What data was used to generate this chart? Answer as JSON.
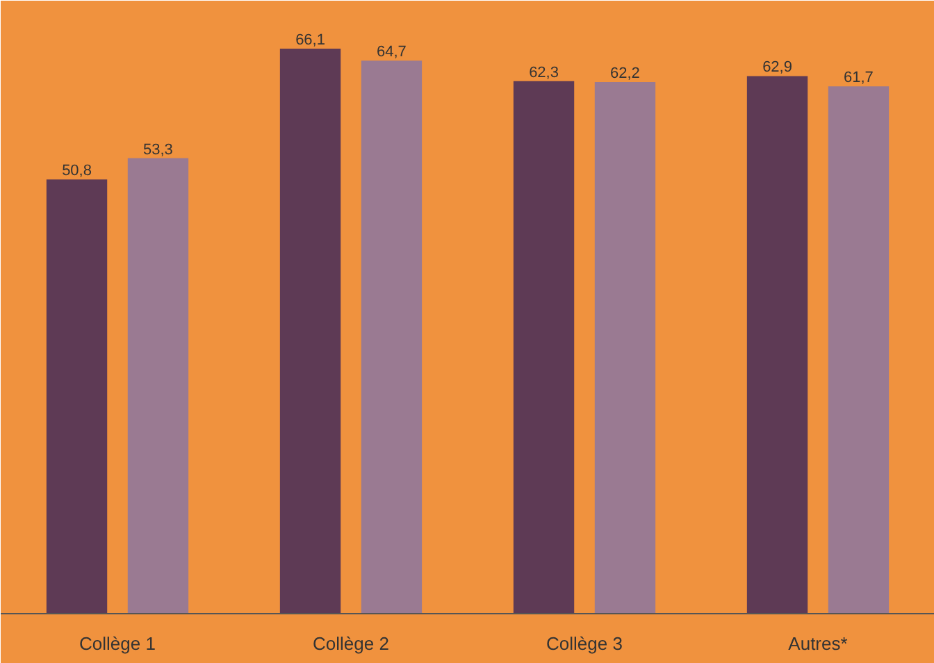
{
  "chart_data": {
    "type": "bar",
    "categories": [
      "Collège 1",
      "Collège 2",
      "Collège 3",
      "Autres*"
    ],
    "series": [
      {
        "color": "#5e3a55",
        "values": [
          50.8,
          66.1,
          62.3,
          62.9
        ],
        "value_labels": [
          "50,8",
          "66,1",
          "62,3",
          "62,9"
        ]
      },
      {
        "color": "#9a7a92",
        "values": [
          53.3,
          64.7,
          62.2,
          61.7
        ],
        "value_labels": [
          "53,3",
          "64,7",
          "62,2",
          "61,7"
        ]
      }
    ],
    "grid": false
  }
}
